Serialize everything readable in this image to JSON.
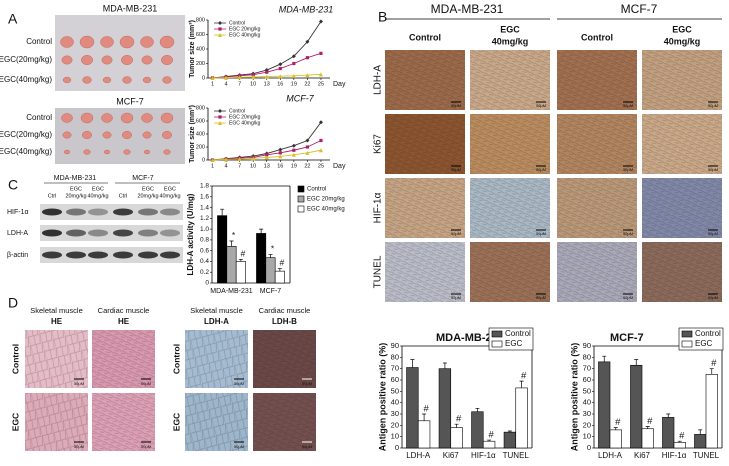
{
  "panel_labels": [
    "A",
    "B",
    "C",
    "D"
  ],
  "panel_a": {
    "photo_titles": [
      "MDA-MB-231",
      "MCF-7"
    ],
    "row_labels": [
      "Control",
      "EGC(20mg/kg)",
      "EGC(40mg/kg)"
    ]
  },
  "panel_b": {
    "cell_lines": [
      "MDA-MB-231",
      "MCF-7"
    ],
    "control": "Control",
    "treatment": "EGC",
    "dose": "40mg/kg",
    "rows": [
      "LDH-A",
      "Ki67",
      "HIF-1α",
      "TUNEL"
    ],
    "scale_bar": "50μM"
  },
  "panel_c": {
    "cell_lines": [
      "MDA-MB-231",
      "MCF-7"
    ],
    "lanes": [
      {
        "name": "Ctrl"
      },
      {
        "name": "EGC",
        "dose": "20mg/kg"
      },
      {
        "name": "EGC",
        "dose": "40mg/kg"
      }
    ],
    "proteins": [
      "HIF-1α",
      "LDH-A",
      "β-actin"
    ]
  },
  "panel_d": {
    "groups": [
      {
        "tissue": "Skeletal muscle",
        "stain": "HE"
      },
      {
        "tissue": "Cardiac muscle",
        "stain": "HE"
      },
      {
        "tissue": "Skeletal muscle",
        "stain": "LDH-A"
      },
      {
        "tissue": "Cardiac muscle",
        "stain": "LDH-B"
      }
    ],
    "rows": [
      "Control",
      "EGC"
    ],
    "scale_bar": "50μM"
  },
  "chart_data": [
    {
      "type": "line",
      "title": "MDA-MB-231",
      "y_label": "Tumor size (mm³)",
      "x_label": "Day",
      "x": [
        1,
        4,
        7,
        10,
        13,
        16,
        19,
        22,
        25
      ],
      "xlim": [
        0,
        27
      ],
      "xticks": [
        1,
        4,
        7,
        10,
        13,
        16,
        19,
        22,
        25
      ],
      "ylim": [
        0,
        800
      ],
      "yticks": [
        0,
        200,
        400,
        600,
        800
      ],
      "legend": "upper left",
      "series": [
        {
          "name": "Control",
          "color": "#333333",
          "marker": "diamond",
          "values": [
            0,
            20,
            40,
            60,
            110,
            190,
            300,
            500,
            780
          ]
        },
        {
          "name": "EGC 20mg/kg",
          "color": "#b0206a",
          "marker": "square",
          "values": [
            0,
            15,
            30,
            45,
            80,
            130,
            200,
            280,
            340
          ]
        },
        {
          "name": "EGC 40mg/kg",
          "color": "#d8c020",
          "marker": "triangle",
          "values": [
            0,
            5,
            10,
            15,
            20,
            25,
            30,
            40,
            50
          ]
        }
      ]
    },
    {
      "type": "line",
      "title": "MCF-7",
      "y_label": "Tumor size (mm³)",
      "x_label": "Day",
      "x": [
        1,
        4,
        7,
        10,
        13,
        16,
        19,
        22,
        25
      ],
      "xlim": [
        0,
        27
      ],
      "xticks": [
        1,
        4,
        7,
        10,
        13,
        16,
        19,
        22,
        25
      ],
      "ylim": [
        0,
        800
      ],
      "yticks": [
        0,
        200,
        400,
        600,
        800
      ],
      "legend": "upper left",
      "series": [
        {
          "name": "Control",
          "color": "#333333",
          "marker": "diamond",
          "values": [
            0,
            20,
            40,
            60,
            100,
            160,
            220,
            300,
            580
          ]
        },
        {
          "name": "EGC 20mg/kg",
          "color": "#b0206a",
          "marker": "square",
          "values": [
            0,
            15,
            30,
            40,
            80,
            110,
            150,
            200,
            300
          ]
        },
        {
          "name": "EGC 40mg/kg",
          "color": "#d8c020",
          "marker": "triangle",
          "values": [
            0,
            10,
            15,
            25,
            40,
            55,
            80,
            110,
            150
          ]
        }
      ]
    },
    {
      "type": "bar",
      "y_label": "LDH-A activity (U/mg)",
      "categories": [
        "MDA-MB-231",
        "MCF-7"
      ],
      "ylim": [
        0,
        1.8
      ],
      "yticks": [
        0,
        0.2,
        0.4,
        0.6,
        0.8,
        {
          "value": 1,
          "label": "1.0"
        },
        1.2,
        1.4,
        1.6,
        1.8
      ],
      "legend": "right",
      "series": [
        {
          "name": "Control",
          "color": "#000000",
          "values": [
            1.25,
            0.92
          ],
          "errors": [
            0.12,
            0.08
          ]
        },
        {
          "name": "EGC 20mg/kg",
          "color": "#a8a8a8",
          "values": [
            0.68,
            0.47
          ],
          "errors": [
            0.1,
            0.06
          ],
          "significance": [
            "*",
            "*"
          ]
        },
        {
          "name": "EGC 40mg/kg",
          "color": "#ffffff",
          "values": [
            0.4,
            0.22
          ],
          "errors": [
            0.04,
            0.05
          ],
          "significance": [
            "#",
            "#"
          ]
        }
      ]
    },
    {
      "type": "bar",
      "title": "MDA-MB-231",
      "y_label": "Antigen positive ratio (%)",
      "categories": [
        "LDH-A",
        "Ki67",
        "HIF-1α",
        "TUNEL"
      ],
      "ylim": [
        0,
        90
      ],
      "yticks": [
        0,
        10,
        20,
        30,
        40,
        50,
        60,
        70,
        80,
        90
      ],
      "legend": "upper right",
      "series": [
        {
          "name": "Control",
          "color": "#555555",
          "values": [
            71,
            70,
            32,
            14
          ],
          "errors": [
            7,
            5,
            3,
            1
          ]
        },
        {
          "name": "EGC",
          "color": "#ffffff",
          "values": [
            24,
            18,
            6,
            53
          ],
          "errors": [
            6,
            3,
            1,
            6
          ],
          "significance": [
            "#",
            "#",
            "#",
            "#"
          ]
        }
      ]
    },
    {
      "type": "bar",
      "title": "MCF-7",
      "y_label": "Antigen positive ratio (%)",
      "categories": [
        "LDH-A",
        "Ki67",
        "HIF-1α",
        "TUNEL"
      ],
      "ylim": [
        0,
        90
      ],
      "yticks": [
        0,
        10,
        20,
        30,
        40,
        50,
        60,
        70,
        80,
        90
      ],
      "legend": "upper right",
      "series": [
        {
          "name": "Control",
          "color": "#555555",
          "values": [
            76,
            73,
            27,
            12
          ],
          "errors": [
            5,
            5,
            3,
            4
          ]
        },
        {
          "name": "EGC",
          "color": "#ffffff",
          "values": [
            16,
            17,
            5,
            65
          ],
          "errors": [
            2,
            2,
            1,
            5
          ],
          "significance": [
            "#",
            "#",
            "#",
            "#"
          ]
        }
      ]
    }
  ]
}
